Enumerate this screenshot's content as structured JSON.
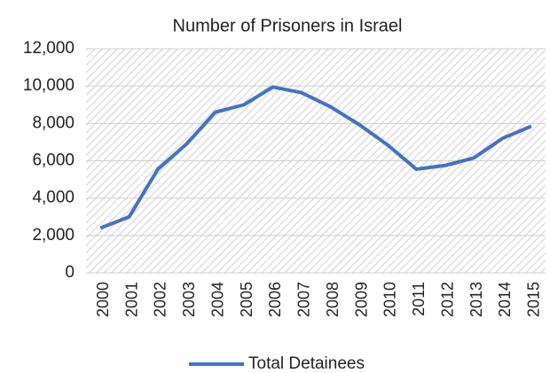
{
  "chart_data": {
    "type": "line",
    "title": "Number of Prisoners in Israel",
    "categories": [
      "2000",
      "2001",
      "2002",
      "2003",
      "2004",
      "2005",
      "2006",
      "2007",
      "2008",
      "2009",
      "2010",
      "2011",
      "2012",
      "2013",
      "2014",
      "2015"
    ],
    "series": [
      {
        "name": "Total Detainees",
        "color": "#4472c4",
        "values": [
          2400,
          3000,
          5550,
          6900,
          8600,
          9000,
          9950,
          9650,
          8900,
          7950,
          6850,
          5550,
          5750,
          6150,
          7200,
          7850
        ]
      }
    ],
    "ylim": [
      0,
      12000
    ],
    "yticks": [
      0,
      {
        "value": 2000,
        "label": "2,000"
      },
      {
        "value": 4000,
        "label": "4,000"
      },
      {
        "value": 6000,
        "label": "6,000"
      },
      {
        "value": 8000,
        "label": "8,000"
      },
      {
        "value": 10000,
        "label": "10,000"
      },
      {
        "value": 12000,
        "label": "12,000"
      }
    ],
    "grid": true,
    "legend": "bottom"
  }
}
